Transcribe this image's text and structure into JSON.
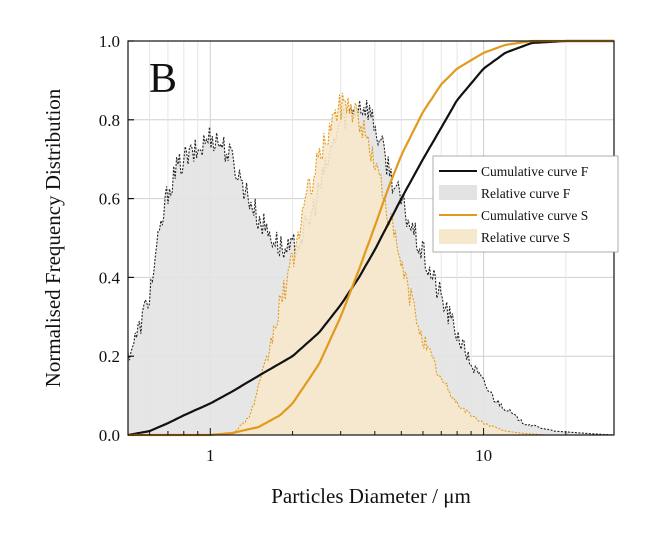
{
  "chart_data": {
    "type": "area",
    "panel_label": "B",
    "title": "",
    "xlabel": "Particles Diameter / μm",
    "ylabel": "Normalised Frequency Distribution",
    "x_scale": "log",
    "xlim": [
      0.5,
      30
    ],
    "ylim": [
      0.0,
      1.0
    ],
    "x_ticks": [
      {
        "value": 1,
        "label": "1"
      },
      {
        "value": 10,
        "label": "10"
      }
    ],
    "y_ticks": [
      {
        "value": 0.0,
        "label": "0.0"
      },
      {
        "value": 0.2,
        "label": "0.2"
      },
      {
        "value": 0.4,
        "label": "0.4"
      },
      {
        "value": 0.6,
        "label": "0.6"
      },
      {
        "value": 0.8,
        "label": "0.8"
      },
      {
        "value": 1.0,
        "label": "1.0"
      }
    ],
    "grid": true,
    "legend_position": "center-right",
    "series": [
      {
        "name": "Cumulative curve F",
        "kind": "line",
        "color": "#111111",
        "x": [
          0.5,
          0.6,
          0.7,
          0.8,
          1.0,
          1.2,
          1.5,
          2.0,
          2.5,
          3.0,
          3.5,
          4.0,
          5.0,
          6.0,
          7.0,
          8.0,
          10.0,
          12.0,
          15.0,
          20.0,
          30.0
        ],
        "y": [
          0.0,
          0.01,
          0.03,
          0.05,
          0.08,
          0.11,
          0.15,
          0.2,
          0.26,
          0.33,
          0.4,
          0.47,
          0.6,
          0.7,
          0.78,
          0.85,
          0.93,
          0.97,
          0.995,
          1.0,
          1.0
        ]
      },
      {
        "name": "Relative curve F",
        "kind": "area",
        "color": "#222222",
        "fill": "#e3e3e3",
        "x": [
          0.5,
          0.55,
          0.6,
          0.65,
          0.7,
          0.75,
          0.8,
          0.9,
          1.0,
          1.1,
          1.2,
          1.35,
          1.5,
          1.7,
          1.9,
          2.1,
          2.3,
          2.6,
          3.0,
          3.5,
          3.8,
          4.2,
          4.8,
          5.5,
          6.5,
          7.5,
          9.0,
          11.0,
          14.0,
          18.0,
          25.0,
          30.0
        ],
        "y": [
          0.2,
          0.27,
          0.36,
          0.5,
          0.62,
          0.67,
          0.7,
          0.72,
          0.76,
          0.74,
          0.7,
          0.62,
          0.55,
          0.5,
          0.46,
          0.49,
          0.54,
          0.66,
          0.8,
          0.84,
          0.83,
          0.74,
          0.62,
          0.52,
          0.4,
          0.3,
          0.18,
          0.09,
          0.03,
          0.01,
          0.003,
          0.0
        ]
      },
      {
        "name": "Cumulative curve S",
        "kind": "line",
        "color": "#e29a1c",
        "x": [
          0.5,
          1.0,
          1.2,
          1.5,
          1.8,
          2.0,
          2.5,
          3.0,
          3.5,
          4.0,
          4.5,
          5.0,
          6.0,
          7.0,
          8.0,
          10.0,
          12.0,
          15.0,
          20.0,
          30.0
        ],
        "y": [
          0.0,
          0.0,
          0.005,
          0.02,
          0.05,
          0.08,
          0.18,
          0.3,
          0.42,
          0.53,
          0.63,
          0.71,
          0.82,
          0.89,
          0.93,
          0.97,
          0.99,
          1.0,
          1.0,
          1.0
        ]
      },
      {
        "name": "Relative curve S",
        "kind": "area",
        "color": "#e29a1c",
        "fill": "#f6e8cc",
        "x": [
          0.5,
          1.2,
          1.4,
          1.6,
          1.8,
          2.0,
          2.2,
          2.5,
          2.8,
          3.1,
          3.4,
          3.8,
          4.2,
          4.6,
          5.0,
          5.5,
          6.2,
          7.0,
          8.0,
          9.0,
          10.0,
          12.0,
          14.0,
          17.0,
          30.0
        ],
        "y": [
          0.0,
          0.0,
          0.05,
          0.18,
          0.33,
          0.44,
          0.58,
          0.7,
          0.8,
          0.85,
          0.82,
          0.74,
          0.64,
          0.53,
          0.43,
          0.33,
          0.22,
          0.14,
          0.08,
          0.05,
          0.03,
          0.01,
          0.004,
          0.0,
          0.0
        ]
      }
    ]
  }
}
